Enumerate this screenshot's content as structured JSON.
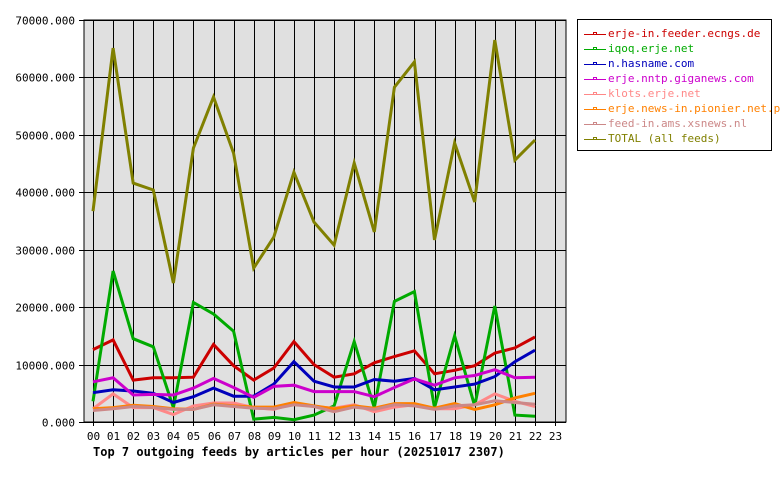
{
  "chart_data": {
    "type": "line",
    "title": "Top 7 outgoing feeds by articles per hour (20251017 2307)",
    "xlabel": "",
    "ylabel": "",
    "ylim": [
      0,
      70000
    ],
    "grid": true,
    "legend_position": "right-top",
    "y_ticks": [
      "0.000",
      "10000.000",
      "20000.000",
      "30000.000",
      "40000.000",
      "50000.000",
      "60000.000",
      "70000.000"
    ],
    "categories": [
      "00",
      "01",
      "02",
      "03",
      "04",
      "05",
      "06",
      "07",
      "08",
      "09",
      "10",
      "11",
      "12",
      "13",
      "14",
      "15",
      "16",
      "17",
      "18",
      "19",
      "20",
      "21",
      "22",
      "23"
    ],
    "series": [
      {
        "name": "erje-in.feeder.ecngs.de",
        "color": "#cc0000",
        "values": [
          12600,
          14300,
          7300,
          7700,
          7700,
          7800,
          13500,
          9800,
          7300,
          9400,
          14000,
          10000,
          7800,
          8400,
          10300,
          11400,
          12400,
          8400,
          9000,
          9800,
          12000,
          12900,
          14800
        ]
      },
      {
        "name": "iqoq.erje.net",
        "color": "#00aa00",
        "values": [
          3600,
          26300,
          14500,
          13100,
          2500,
          20800,
          18800,
          15800,
          500,
          800,
          400,
          1200,
          2800,
          14000,
          2500,
          21000,
          22700,
          2500,
          15000,
          2800,
          20200,
          1200,
          1000
        ]
      },
      {
        "name": "n.hasname.com",
        "color": "#0000bb",
        "values": [
          5100,
          5600,
          5400,
          5000,
          3400,
          4400,
          5900,
          4500,
          4500,
          6600,
          10500,
          7100,
          6100,
          6100,
          7400,
          7100,
          7600,
          5600,
          6100,
          6600,
          7900,
          10500,
          12500
        ]
      },
      {
        "name": "erje.nntp.giganews.com",
        "color": "#cc00cc",
        "values": [
          7000,
          7700,
          4700,
          4800,
          4700,
          5900,
          7600,
          6000,
          4300,
          6200,
          6400,
          5300,
          5300,
          5300,
          4400,
          6000,
          7500,
          6400,
          7700,
          8100,
          9100,
          7700,
          7800
        ]
      },
      {
        "name": "klots.erje.net",
        "color": "#ff8888",
        "values": [
          2300,
          4900,
          2500,
          2500,
          1300,
          2800,
          3300,
          3300,
          2500,
          2200,
          3200,
          2700,
          2400,
          3000,
          1800,
          2600,
          3000,
          2300,
          2300,
          3000,
          4900,
          3600,
          2700
        ]
      },
      {
        "name": "erje.news-in.pionier.net.pl",
        "color": "#ff8000",
        "values": [
          2300,
          2500,
          2900,
          2700,
          2300,
          2200,
          3100,
          2800,
          2600,
          2600,
          3400,
          2800,
          2300,
          2800,
          2400,
          3200,
          3200,
          2400,
          3200,
          2200,
          3000,
          4200,
          5000
        ]
      },
      {
        "name": "feed-in.ams.xsnews.nl",
        "color": "#cc8888",
        "values": [
          2000,
          2300,
          2700,
          2500,
          2200,
          2200,
          3000,
          2700,
          2400,
          2300,
          3000,
          2700,
          1800,
          2600,
          2200,
          3000,
          2800,
          2200,
          2800,
          3000,
          3700,
          3400,
          3100
        ]
      },
      {
        "name": "TOTAL (all feeds)",
        "color": "#808000",
        "values": [
          36700,
          65100,
          41600,
          40400,
          24200,
          47700,
          56600,
          46800,
          26800,
          32200,
          43500,
          34800,
          30800,
          45100,
          33100,
          58300,
          62700,
          31700,
          48600,
          38300,
          66500,
          45600,
          49100
        ]
      }
    ]
  },
  "legend": {
    "items": [
      {
        "label": "erje-in.feeder.ecngs.de",
        "color": "#cc0000"
      },
      {
        "label": "iqoq.erje.net",
        "color": "#00aa00"
      },
      {
        "label": "n.hasname.com",
        "color": "#0000bb"
      },
      {
        "label": "erje.nntp.giganews.com",
        "color": "#cc00cc"
      },
      {
        "label": "klots.erje.net",
        "color": "#ff8888"
      },
      {
        "label": "erje.news-in.pionier.net.pl",
        "color": "#ff8000"
      },
      {
        "label": "feed-in.ams.xsnews.nl",
        "color": "#cc8888"
      },
      {
        "label": "TOTAL (all feeds)",
        "color": "#808000"
      }
    ]
  },
  "colors": {
    "plot_background": "#e0e0e0",
    "grid": "#000000",
    "background": "#ffffff"
  }
}
